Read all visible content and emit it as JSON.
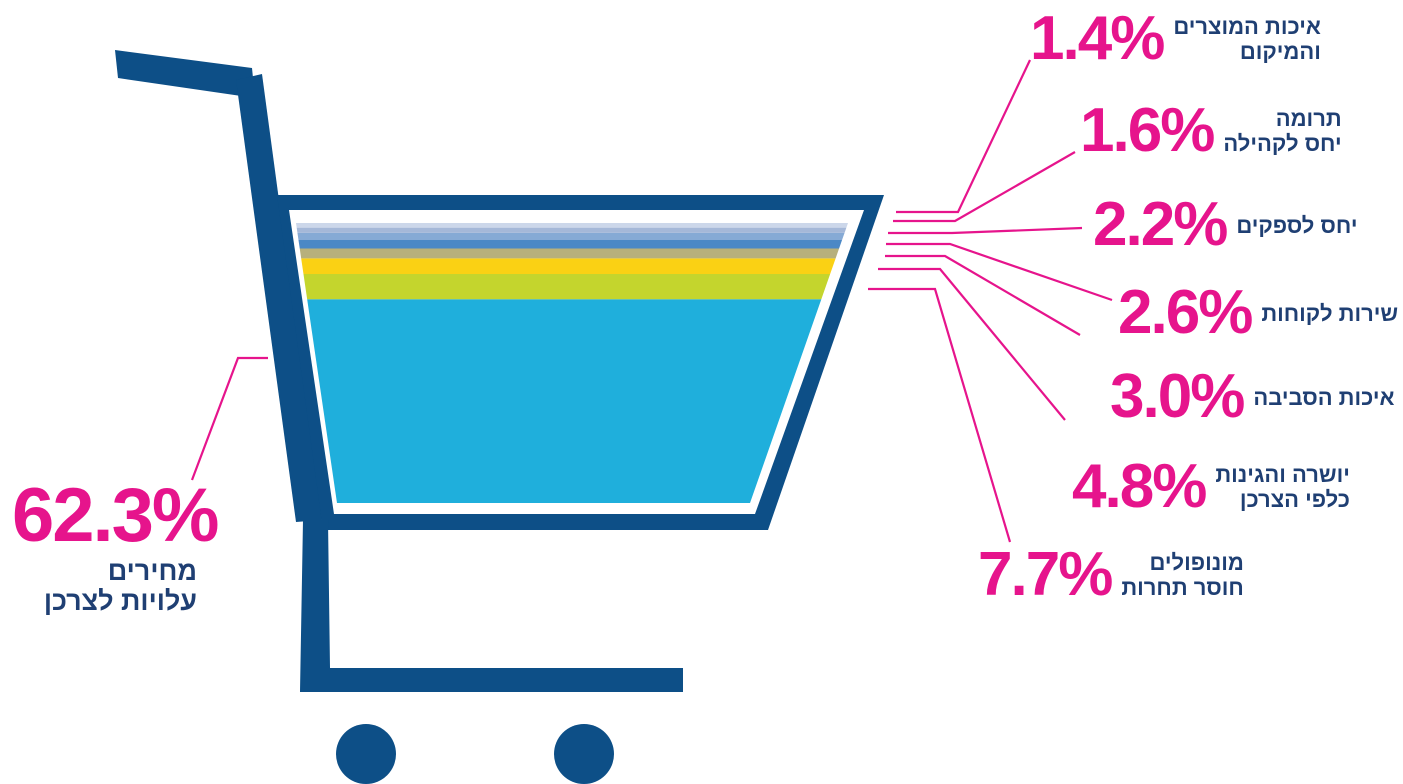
{
  "chart_data": {
    "type": "stacked-bar",
    "unit": "%",
    "segments": [
      {
        "value": 62.3,
        "value_label": "62.3%",
        "label_lines": [
          "מחירים",
          "עלויות לצרכן"
        ],
        "color": "#1fafdc"
      },
      {
        "value": 7.7,
        "value_label": "7.7%",
        "label_lines": [
          "מונופולים",
          "חוסר תחרות"
        ],
        "color": "#c4d52d"
      },
      {
        "value": 4.8,
        "value_label": "4.8%",
        "label_lines": [
          "יושרה והגינות",
          "כלפי הצרכן"
        ],
        "color": "#fad114"
      },
      {
        "value": 3.0,
        "value_label": "3.0%",
        "label_lines": [
          "איכות הסביבה"
        ],
        "color": "#b7b07c"
      },
      {
        "value": 2.6,
        "value_label": "2.6%",
        "label_lines": [
          "שירות לקוחות"
        ],
        "color": "#4b88c6"
      },
      {
        "value": 2.2,
        "value_label": "2.2%",
        "label_lines": [
          "יחס לספקים"
        ],
        "color": "#86aad5"
      },
      {
        "value": 1.6,
        "value_label": "1.6%",
        "label_lines": [
          "תרומה",
          "יחס לקהילה"
        ],
        "color": "#a5b8d8"
      },
      {
        "value": 1.4,
        "value_label": "1.4%",
        "label_lines": [
          "איכות המוצרים",
          "והמיקום"
        ],
        "color": "#ccd7ea"
      }
    ]
  },
  "colors": {
    "cart": "#0d4f87",
    "accent": "#e6148c",
    "label_text": "#1f3f73"
  }
}
